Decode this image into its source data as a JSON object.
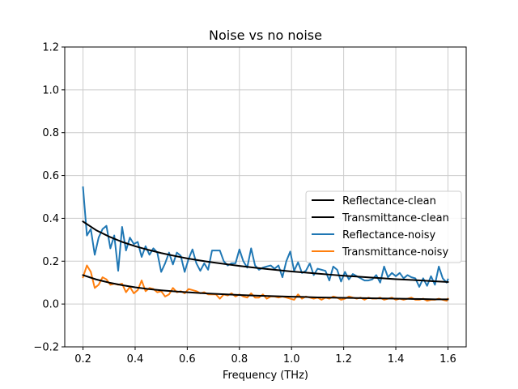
{
  "chart_data": {
    "type": "line",
    "title": "Noise vs no noise",
    "xlabel": "Frequency (THz)",
    "ylabel": "",
    "xlim": [
      0.13,
      1.67
    ],
    "ylim": [
      -0.2,
      1.2
    ],
    "xticks": [
      0.2,
      0.4,
      0.6,
      0.8,
      1.0,
      1.2,
      1.4,
      1.6
    ],
    "xtick_labels": [
      "0.2",
      "0.4",
      "0.6",
      "0.8",
      "1.0",
      "1.2",
      "1.4",
      "1.6"
    ],
    "yticks": [
      -0.2,
      0.0,
      0.2,
      0.4,
      0.6,
      0.8,
      1.0,
      1.2
    ],
    "ytick_labels": [
      "−0.2",
      "0.0",
      "0.2",
      "0.4",
      "0.6",
      "0.8",
      "1.0",
      "1.2"
    ],
    "grid": true,
    "legend_position": "center-right",
    "series": [
      {
        "name": "Reflectance-clean",
        "color": "#000000",
        "x": [
          0.2,
          0.25,
          0.3,
          0.35,
          0.4,
          0.45,
          0.5,
          0.55,
          0.6,
          0.65,
          0.7,
          0.75,
          0.8,
          0.85,
          0.9,
          0.95,
          1.0,
          1.05,
          1.1,
          1.15,
          1.2,
          1.25,
          1.3,
          1.35,
          1.4,
          1.45,
          1.5,
          1.55,
          1.6
        ],
        "y": [
          0.385,
          0.345,
          0.315,
          0.29,
          0.27,
          0.253,
          0.238,
          0.225,
          0.213,
          0.203,
          0.194,
          0.186,
          0.178,
          0.171,
          0.164,
          0.158,
          0.152,
          0.147,
          0.142,
          0.137,
          0.132,
          0.128,
          0.124,
          0.12,
          0.116,
          0.113,
          0.11,
          0.106,
          0.103
        ]
      },
      {
        "name": "Transmittance-clean",
        "color": "#000000",
        "x": [
          0.2,
          0.25,
          0.3,
          0.35,
          0.4,
          0.45,
          0.5,
          0.55,
          0.6,
          0.65,
          0.7,
          0.75,
          0.8,
          0.85,
          0.9,
          0.95,
          1.0,
          1.05,
          1.1,
          1.15,
          1.2,
          1.25,
          1.3,
          1.35,
          1.4,
          1.45,
          1.5,
          1.55,
          1.6
        ],
        "y": [
          0.135,
          0.115,
          0.1,
          0.088,
          0.078,
          0.07,
          0.064,
          0.059,
          0.055,
          0.051,
          0.048,
          0.045,
          0.042,
          0.04,
          0.038,
          0.036,
          0.034,
          0.033,
          0.031,
          0.03,
          0.029,
          0.028,
          0.027,
          0.026,
          0.025,
          0.024,
          0.023,
          0.022,
          0.022
        ]
      },
      {
        "name": "Reflectance-noisy",
        "color": "#1f77b4",
        "x": [
          0.2,
          0.215,
          0.23,
          0.245,
          0.26,
          0.275,
          0.29,
          0.305,
          0.32,
          0.335,
          0.35,
          0.365,
          0.38,
          0.395,
          0.41,
          0.425,
          0.44,
          0.455,
          0.47,
          0.485,
          0.5,
          0.515,
          0.53,
          0.545,
          0.56,
          0.575,
          0.59,
          0.605,
          0.62,
          0.635,
          0.65,
          0.665,
          0.68,
          0.695,
          0.71,
          0.725,
          0.74,
          0.755,
          0.77,
          0.785,
          0.8,
          0.815,
          0.83,
          0.845,
          0.86,
          0.875,
          0.89,
          0.905,
          0.92,
          0.935,
          0.95,
          0.965,
          0.98,
          0.995,
          1.01,
          1.025,
          1.04,
          1.055,
          1.07,
          1.085,
          1.1,
          1.115,
          1.13,
          1.145,
          1.16,
          1.175,
          1.19,
          1.205,
          1.22,
          1.235,
          1.25,
          1.265,
          1.28,
          1.295,
          1.31,
          1.325,
          1.34,
          1.355,
          1.37,
          1.385,
          1.4,
          1.415,
          1.43,
          1.445,
          1.46,
          1.475,
          1.49,
          1.505,
          1.52,
          1.535,
          1.55,
          1.565,
          1.58,
          1.595,
          1.6
        ],
        "y": [
          0.545,
          0.32,
          0.35,
          0.23,
          0.31,
          0.35,
          0.365,
          0.26,
          0.32,
          0.155,
          0.36,
          0.25,
          0.31,
          0.28,
          0.29,
          0.22,
          0.27,
          0.23,
          0.26,
          0.24,
          0.15,
          0.19,
          0.24,
          0.185,
          0.24,
          0.225,
          0.15,
          0.21,
          0.255,
          0.19,
          0.155,
          0.19,
          0.16,
          0.25,
          0.25,
          0.25,
          0.2,
          0.18,
          0.19,
          0.19,
          0.255,
          0.2,
          0.17,
          0.26,
          0.18,
          0.16,
          0.17,
          0.175,
          0.18,
          0.165,
          0.18,
          0.125,
          0.2,
          0.245,
          0.155,
          0.195,
          0.145,
          0.155,
          0.19,
          0.135,
          0.165,
          0.16,
          0.155,
          0.11,
          0.175,
          0.16,
          0.105,
          0.15,
          0.115,
          0.14,
          0.13,
          0.12,
          0.11,
          0.11,
          0.115,
          0.135,
          0.1,
          0.175,
          0.125,
          0.145,
          0.13,
          0.145,
          0.12,
          0.135,
          0.125,
          0.12,
          0.08,
          0.12,
          0.085,
          0.13,
          0.09,
          0.175,
          0.12,
          0.1,
          0.115
        ]
      },
      {
        "name": "Transmittance-noisy",
        "color": "#ff7f0e",
        "x": [
          0.2,
          0.215,
          0.23,
          0.245,
          0.26,
          0.275,
          0.29,
          0.305,
          0.32,
          0.335,
          0.35,
          0.365,
          0.38,
          0.395,
          0.41,
          0.425,
          0.44,
          0.455,
          0.47,
          0.485,
          0.5,
          0.515,
          0.53,
          0.545,
          0.56,
          0.575,
          0.59,
          0.605,
          0.62,
          0.635,
          0.65,
          0.665,
          0.68,
          0.695,
          0.71,
          0.725,
          0.74,
          0.755,
          0.77,
          0.785,
          0.8,
          0.815,
          0.83,
          0.845,
          0.86,
          0.875,
          0.89,
          0.905,
          0.92,
          0.935,
          0.95,
          0.965,
          0.98,
          0.995,
          1.01,
          1.025,
          1.04,
          1.055,
          1.07,
          1.085,
          1.1,
          1.115,
          1.13,
          1.145,
          1.16,
          1.175,
          1.19,
          1.205,
          1.22,
          1.235,
          1.25,
          1.265,
          1.28,
          1.295,
          1.31,
          1.325,
          1.34,
          1.355,
          1.37,
          1.385,
          1.4,
          1.415,
          1.43,
          1.445,
          1.46,
          1.475,
          1.49,
          1.505,
          1.52,
          1.535,
          1.55,
          1.565,
          1.58,
          1.595,
          1.6
        ],
        "y": [
          0.125,
          0.18,
          0.15,
          0.075,
          0.09,
          0.125,
          0.115,
          0.09,
          0.095,
          0.09,
          0.095,
          0.055,
          0.08,
          0.05,
          0.065,
          0.11,
          0.06,
          0.075,
          0.07,
          0.055,
          0.06,
          0.035,
          0.045,
          0.075,
          0.055,
          0.06,
          0.05,
          0.07,
          0.065,
          0.06,
          0.05,
          0.055,
          0.045,
          0.045,
          0.045,
          0.025,
          0.045,
          0.04,
          0.05,
          0.035,
          0.045,
          0.035,
          0.03,
          0.05,
          0.03,
          0.03,
          0.045,
          0.025,
          0.035,
          0.035,
          0.03,
          0.035,
          0.03,
          0.025,
          0.02,
          0.045,
          0.025,
          0.035,
          0.03,
          0.025,
          0.03,
          0.02,
          0.03,
          0.025,
          0.035,
          0.03,
          0.02,
          0.025,
          0.035,
          0.03,
          0.025,
          0.03,
          0.02,
          0.03,
          0.025,
          0.025,
          0.03,
          0.02,
          0.025,
          0.03,
          0.02,
          0.025,
          0.02,
          0.025,
          0.03,
          0.02,
          0.02,
          0.025,
          0.015,
          0.02,
          0.02,
          0.025,
          0.02,
          0.015,
          0.025
        ]
      }
    ]
  }
}
